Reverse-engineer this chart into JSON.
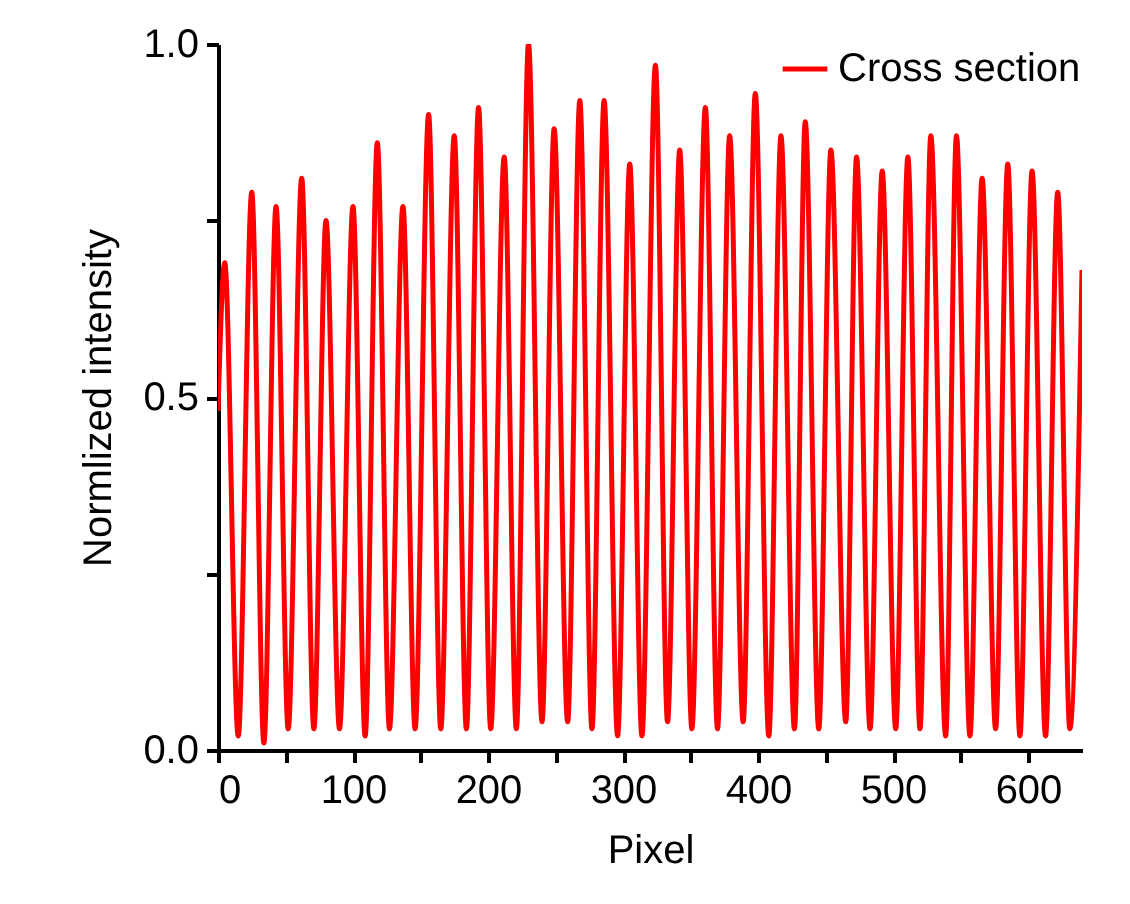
{
  "chart_data": {
    "type": "line",
    "xlabel": "Pixel",
    "ylabel": "Normlized intensity",
    "xlim": [
      0,
      640
    ],
    "ylim": [
      0,
      1.0
    ],
    "xticks": [
      0,
      {
        "value": 50,
        "label": null
      },
      100,
      {
        "value": 150,
        "label": null
      },
      200,
      {
        "value": 250,
        "label": null
      },
      300,
      {
        "value": 350,
        "label": null
      },
      400,
      {
        "value": 450,
        "label": null
      },
      500,
      {
        "value": 550,
        "label": null
      },
      600
    ],
    "yticks": [
      {
        "value": 0,
        "label": "0.0"
      },
      {
        "value": 0.25,
        "label": null
      },
      {
        "value": 0.5,
        "label": "0.5"
      },
      {
        "value": 0.75,
        "label": null
      },
      {
        "value": 1.0,
        "label": "1.0"
      }
    ],
    "legend": "top right",
    "grid": false,
    "marker": "none",
    "line_style": "solid",
    "series": [
      {
        "name": "Cross section",
        "color": "#ff0000",
        "x": [
          0,
          5,
          15,
          25,
          34,
          43,
          52,
          62,
          71,
          80,
          90,
          100,
          109,
          118,
          127,
          137,
          146,
          156,
          165,
          175,
          184,
          193,
          202,
          212,
          221,
          230,
          240,
          249,
          259,
          268,
          277,
          286,
          296,
          305,
          314,
          324,
          333,
          342,
          351,
          361,
          370,
          379,
          389,
          398,
          408,
          417,
          427,
          435,
          445,
          454,
          465,
          473,
          483,
          492,
          502,
          511,
          520,
          528,
          539,
          547,
          557,
          566,
          576,
          585,
          594,
          603,
          613,
          622,
          631,
          640
        ],
        "values": [
          0.48,
          0.69,
          0.02,
          0.79,
          0.01,
          0.77,
          0.03,
          0.81,
          0.03,
          0.75,
          0.03,
          0.77,
          0.02,
          0.86,
          0.03,
          0.77,
          0.03,
          0.9,
          0.03,
          0.87,
          0.03,
          0.91,
          0.03,
          0.84,
          0.03,
          1.0,
          0.04,
          0.88,
          0.04,
          0.92,
          0.03,
          0.92,
          0.02,
          0.83,
          0.02,
          0.97,
          0.04,
          0.85,
          0.03,
          0.91,
          0.03,
          0.87,
          0.04,
          0.93,
          0.02,
          0.87,
          0.03,
          0.89,
          0.03,
          0.85,
          0.04,
          0.84,
          0.03,
          0.82,
          0.03,
          0.84,
          0.03,
          0.87,
          0.02,
          0.87,
          0.02,
          0.81,
          0.03,
          0.83,
          0.02,
          0.82,
          0.02,
          0.79,
          0.03,
          0.68
        ]
      }
    ]
  }
}
